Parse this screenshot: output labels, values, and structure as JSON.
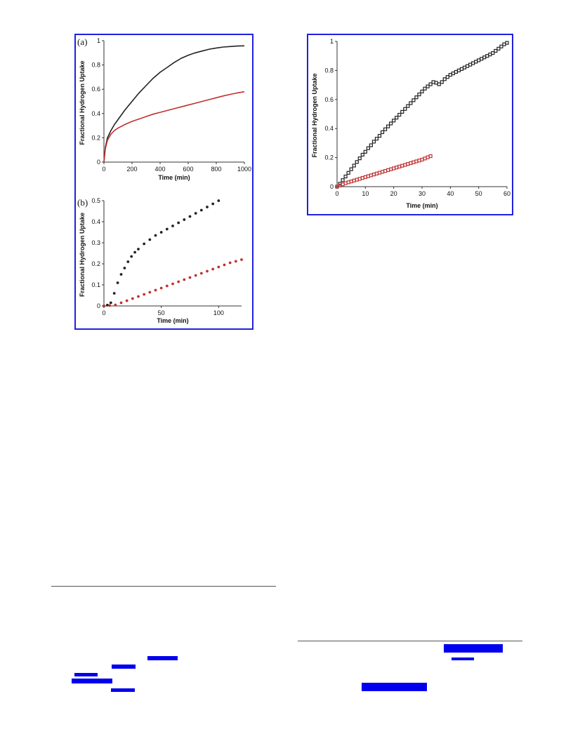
{
  "chart_data": [
    {
      "panel_label": "(a)",
      "type": "line",
      "xlabel": "Time (min)",
      "ylabel": "Fractional Hydrogen Uptake",
      "xlim": [
        0,
        1000
      ],
      "ylim": [
        0,
        1
      ],
      "xticks": [
        "0",
        "200",
        "400",
        "600",
        "800",
        "1000"
      ],
      "yticks": [
        "0",
        "0.2",
        "0.4",
        "0.6",
        "0.8",
        "1"
      ],
      "series": [
        {
          "color": "#222222",
          "x": [
            0,
            10,
            25,
            50,
            75,
            100,
            150,
            200,
            250,
            300,
            350,
            400,
            450,
            500,
            550,
            600,
            650,
            700,
            750,
            800,
            850,
            900,
            950,
            1000
          ],
          "y": [
            0,
            0.12,
            0.2,
            0.26,
            0.31,
            0.35,
            0.43,
            0.5,
            0.57,
            0.63,
            0.69,
            0.74,
            0.78,
            0.82,
            0.855,
            0.88,
            0.9,
            0.915,
            0.93,
            0.94,
            0.948,
            0.952,
            0.956,
            0.958
          ]
        },
        {
          "color": "#c03030",
          "x": [
            0,
            10,
            25,
            50,
            75,
            100,
            150,
            200,
            250,
            300,
            350,
            400,
            450,
            500,
            550,
            600,
            650,
            700,
            750,
            800,
            850,
            900,
            950,
            1000
          ],
          "y": [
            0,
            0.11,
            0.18,
            0.23,
            0.26,
            0.28,
            0.31,
            0.335,
            0.355,
            0.375,
            0.395,
            0.41,
            0.425,
            0.44,
            0.455,
            0.47,
            0.485,
            0.5,
            0.515,
            0.53,
            0.545,
            0.558,
            0.57,
            0.58
          ]
        }
      ]
    },
    {
      "panel_label": "(b)",
      "type": "scatter",
      "xlabel": "Time (min)",
      "ylabel": "Fractional Hydrogen Uptake",
      "xlim": [
        0,
        120
      ],
      "ylim": [
        0,
        0.5
      ],
      "xticks": [
        "0",
        "50",
        "100"
      ],
      "yticks": [
        "0",
        "0.1",
        "0.2",
        "0.3",
        "0.4",
        "0.5"
      ],
      "series": [
        {
          "color": "#222222",
          "x": [
            0,
            3,
            6,
            9,
            12,
            15,
            18,
            21,
            24,
            27,
            30,
            35,
            40,
            45,
            50,
            55,
            60,
            65,
            70,
            75,
            80,
            85,
            90,
            95,
            100
          ],
          "y": [
            0,
            0.004,
            0.015,
            0.06,
            0.11,
            0.15,
            0.18,
            0.21,
            0.235,
            0.255,
            0.27,
            0.295,
            0.315,
            0.335,
            0.35,
            0.365,
            0.38,
            0.395,
            0.41,
            0.425,
            0.44,
            0.455,
            0.47,
            0.485,
            0.5
          ]
        },
        {
          "color": "#c03030",
          "x": [
            0,
            5,
            10,
            15,
            20,
            25,
            30,
            35,
            40,
            45,
            50,
            55,
            60,
            65,
            70,
            75,
            80,
            85,
            90,
            95,
            100,
            105,
            110,
            115,
            120
          ],
          "y": [
            0,
            0.002,
            0.005,
            0.015,
            0.025,
            0.035,
            0.045,
            0.055,
            0.065,
            0.075,
            0.085,
            0.095,
            0.105,
            0.115,
            0.125,
            0.135,
            0.145,
            0.155,
            0.165,
            0.175,
            0.185,
            0.195,
            0.205,
            0.212,
            0.22
          ]
        }
      ]
    },
    {
      "panel_label": "",
      "type": "scatter",
      "xlabel": "Time (min)",
      "ylabel": "Fractional Hydrogen Uptake",
      "xlim": [
        0,
        60
      ],
      "ylim": [
        0,
        1
      ],
      "xticks": [
        "0",
        "10",
        "20",
        "30",
        "40",
        "50",
        "60"
      ],
      "yticks": [
        "0",
        "0.2",
        "0.4",
        "0.6",
        "0.8",
        "1"
      ],
      "series": [
        {
          "color": "#222222",
          "marker": "square",
          "x": [
            0,
            1,
            2,
            3,
            4,
            5,
            6,
            7,
            8,
            9,
            10,
            11,
            12,
            13,
            14,
            15,
            16,
            17,
            18,
            19,
            20,
            21,
            22,
            23,
            24,
            25,
            26,
            27,
            28,
            29,
            30,
            31,
            32,
            33,
            34,
            35,
            36,
            37,
            38,
            39,
            40,
            41,
            42,
            43,
            44,
            45,
            46,
            47,
            48,
            49,
            50,
            51,
            52,
            53,
            54,
            55,
            56,
            57,
            58,
            59,
            60
          ],
          "y": [
            0,
            0.02,
            0.045,
            0.07,
            0.095,
            0.12,
            0.145,
            0.17,
            0.195,
            0.22,
            0.24,
            0.265,
            0.285,
            0.31,
            0.33,
            0.35,
            0.375,
            0.395,
            0.415,
            0.435,
            0.455,
            0.475,
            0.495,
            0.515,
            0.535,
            0.555,
            0.575,
            0.595,
            0.615,
            0.635,
            0.655,
            0.675,
            0.69,
            0.705,
            0.72,
            0.715,
            0.705,
            0.72,
            0.74,
            0.755,
            0.77,
            0.78,
            0.79,
            0.8,
            0.81,
            0.82,
            0.83,
            0.84,
            0.85,
            0.86,
            0.87,
            0.88,
            0.89,
            0.9,
            0.91,
            0.92,
            0.935,
            0.95,
            0.965,
            0.98,
            0.99
          ]
        },
        {
          "color": "#c03030",
          "marker": "square",
          "x": [
            0,
            1,
            2,
            3,
            4,
            5,
            6,
            7,
            8,
            9,
            10,
            11,
            12,
            13,
            14,
            15,
            16,
            17,
            18,
            19,
            20,
            21,
            22,
            23,
            24,
            25,
            26,
            27,
            28,
            29,
            30,
            31,
            32,
            33
          ],
          "y": [
            0,
            0.008,
            0.016,
            0.024,
            0.03,
            0.036,
            0.042,
            0.048,
            0.054,
            0.06,
            0.066,
            0.072,
            0.078,
            0.084,
            0.09,
            0.096,
            0.102,
            0.108,
            0.114,
            0.12,
            0.126,
            0.132,
            0.138,
            0.144,
            0.15,
            0.156,
            0.162,
            0.168,
            0.174,
            0.18,
            0.186,
            0.194,
            0.202,
            0.21
          ]
        }
      ]
    }
  ]
}
